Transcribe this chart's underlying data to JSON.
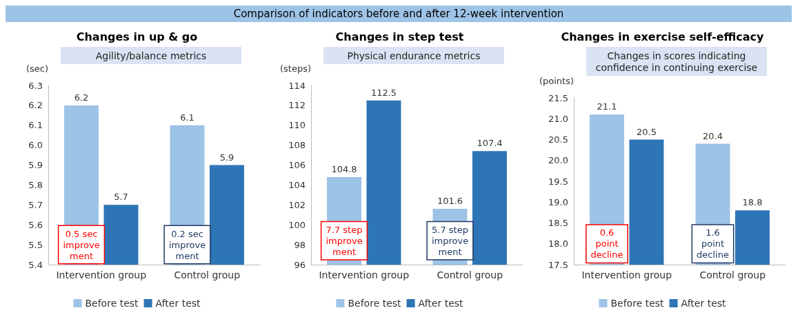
{
  "chart_data": [
    {
      "type": "other",
      "title": "Comparison of indicators before and after 12-week intervention"
    },
    {
      "type": "bar",
      "title": "Changes in up & go",
      "subtitle": "Agility/balance metrics",
      "ylabel": "(sec)",
      "categories": [
        "Intervention group",
        "Control group"
      ],
      "series": [
        {
          "name": "Before test",
          "color": "#9dc3e6",
          "values": [
            6.2,
            6.1
          ]
        },
        {
          "name": "After test",
          "color": "#2e75b6",
          "values": [
            5.7,
            5.9
          ]
        }
      ],
      "ylim": [
        5.4,
        6.3
      ],
      "yticks": [
        5.4,
        5.5,
        5.6,
        5.7,
        5.8,
        5.9,
        {
          "value": 6,
          "label": "6.0"
        },
        6.1,
        6.2,
        6.3
      ],
      "data_labels": true,
      "legend": "bottom",
      "grid": false,
      "annotations": [
        {
          "text": "0.5 sec\nimprove\nment",
          "x": "Intervention group",
          "y": 5.5
        },
        {
          "text": "0.2 sec\nimprove\nment",
          "x": "Control group",
          "y": 5.5
        }
      ]
    },
    {
      "type": "bar",
      "title": "Changes in step test",
      "subtitle": "Physical endurance metrics",
      "ylabel": "(steps)",
      "categories": [
        "Intervention group",
        "Control group"
      ],
      "series": [
        {
          "name": "Before test",
          "color": "#9dc3e6",
          "values": [
            104.8,
            101.6
          ]
        },
        {
          "name": "After test",
          "color": "#2e75b6",
          "values": [
            112.5,
            107.4
          ]
        }
      ],
      "ylim": [
        96,
        114
      ],
      "yticks": [
        96,
        98,
        100,
        102,
        104,
        106,
        108,
        110,
        112,
        114
      ],
      "data_labels": true,
      "legend": "bottom",
      "grid": false,
      "annotations": [
        {
          "text": "7.7 step\nimprove\nment",
          "x": "Intervention group",
          "y": 98.4
        },
        {
          "text": "5.7 step\nimprove\nment",
          "x": "Control group",
          "y": 98.4
        }
      ]
    },
    {
      "type": "bar",
      "title": "Changes in exercise self-efficacy",
      "subtitle": "Changes in scores indicating\nconfidence in continuing exercise",
      "ylabel": "(points)",
      "categories": [
        "Intervention group",
        "Control group"
      ],
      "series": [
        {
          "name": "Before test",
          "color": "#9dc3e6",
          "values": [
            21.1,
            20.4
          ]
        },
        {
          "name": "After test",
          "color": "#2e75b6",
          "values": [
            20.5,
            18.8
          ]
        }
      ],
      "ylim": [
        17.5,
        21.5
      ],
      "yticks": [
        17.5,
        {
          "value": 18,
          "label": "18.0"
        },
        18.5,
        {
          "value": 19,
          "label": "19.0"
        },
        19.5,
        {
          "value": 20,
          "label": "20.0"
        },
        20.5,
        {
          "value": 21,
          "label": "21.0"
        },
        21.5
      ],
      "data_labels": true,
      "legend": "bottom",
      "grid": false,
      "annotations": [
        {
          "text": "0.6\npoint\ndecline",
          "x": "Intervention group",
          "y": 18.0
        },
        {
          "text": "1.6\npoint\ndecline",
          "x": "Control group",
          "y": 18.0
        }
      ]
    }
  ]
}
